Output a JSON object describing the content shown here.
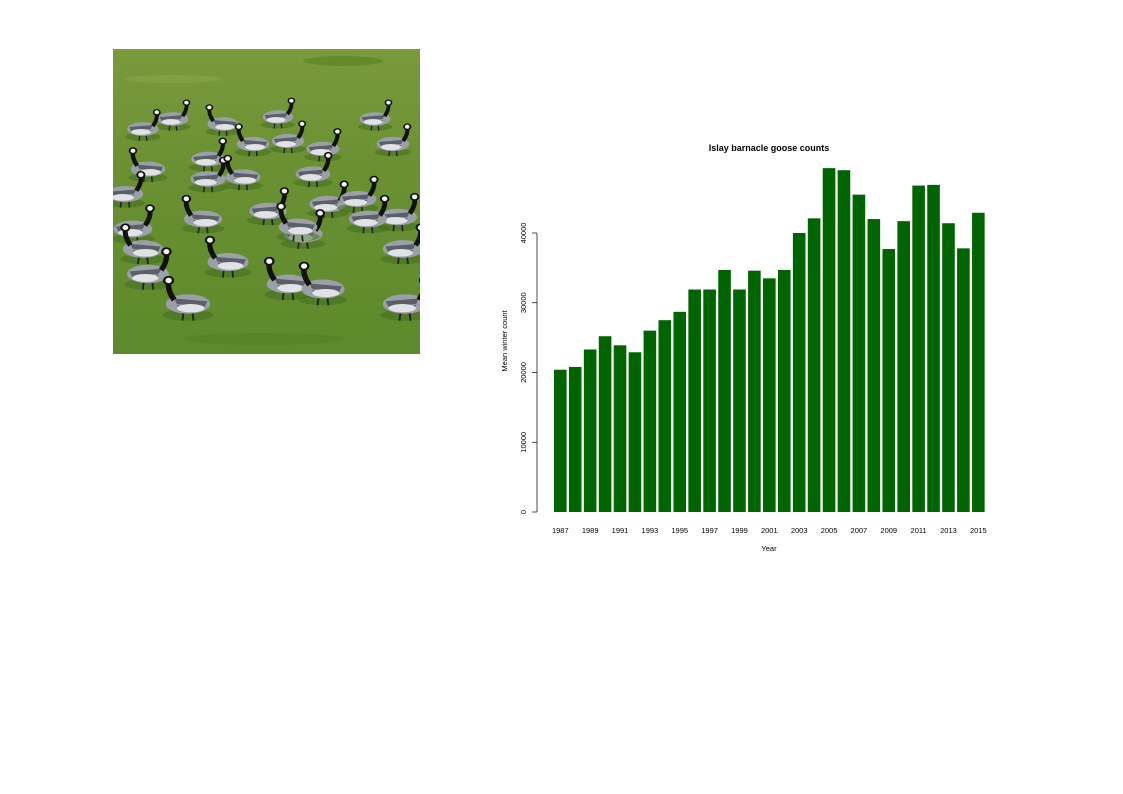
{
  "photo": {
    "subject": "barnacle geese grazing on grass"
  },
  "chart_data": {
    "type": "bar",
    "title": "Islay barnacle goose counts",
    "xlabel": "Year",
    "ylabel": "Mean winter count",
    "bar_color": "#006400",
    "ylim": [
      0,
      50000
    ],
    "yticks": [
      0,
      10000,
      20000,
      30000,
      40000
    ],
    "categories": [
      "1987",
      "1988",
      "1989",
      "1990",
      "1991",
      "1992",
      "1993",
      "1994",
      "1995",
      "1996",
      "1997",
      "1998",
      "1999",
      "2000",
      "2001",
      "2002",
      "2003",
      "2004",
      "2005",
      "2006",
      "2007",
      "2008",
      "2009",
      "2010",
      "2011",
      "2012",
      "2013",
      "2014",
      "2015"
    ],
    "x_tick_labels": [
      "1987",
      "1989",
      "1991",
      "1993",
      "1995",
      "1997",
      "1999",
      "2001",
      "2003",
      "2005",
      "2007",
      "2009",
      "2011",
      "2013",
      "2015"
    ],
    "values": [
      20400,
      20800,
      23300,
      25200,
      23900,
      22900,
      26000,
      27500,
      28700,
      31900,
      31900,
      34700,
      31900,
      34600,
      33500,
      34700,
      40000,
      42100,
      49300,
      49000,
      45500,
      42000,
      37700,
      41700,
      46800,
      46900,
      41400,
      37800,
      42900
    ]
  }
}
